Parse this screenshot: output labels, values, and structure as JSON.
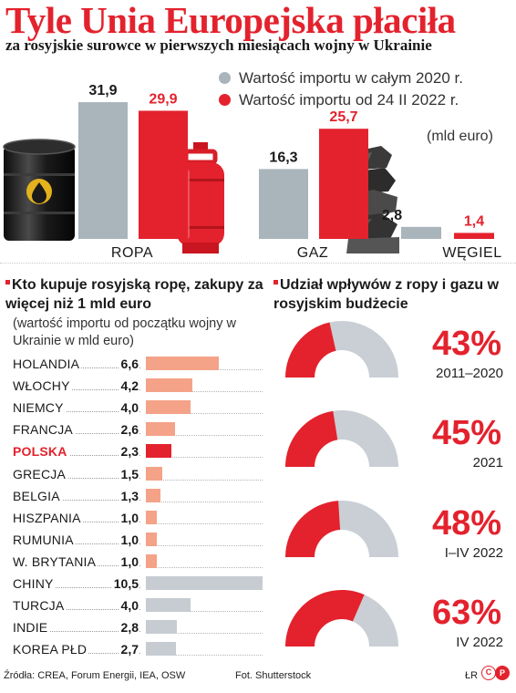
{
  "title": "Tyle Unia Europejska płaciła",
  "subtitle": "za rosyjskie surowce w pierwszych miesiącach wojny w Ukrainie",
  "colors": {
    "red": "#e3222d",
    "gray": "#a9b4bb",
    "salmon": "#f4a288",
    "lightgray": "#c6ccd1",
    "arc_gray": "#c9cfd4"
  },
  "chart_data": [
    {
      "type": "bar",
      "categories": [
        "ROPA",
        "GAZ",
        "WĘGIEL"
      ],
      "series": [
        {
          "name": "Wartość importu w całym 2020 r.",
          "values": [
            31.9,
            16.3,
            2.8
          ],
          "labels": [
            "31,9",
            "16,3",
            "2,8"
          ]
        },
        {
          "name": "Wartość importu od 24 II 2022 r.",
          "values": [
            29.9,
            25.7,
            1.4
          ],
          "labels": [
            "29,9",
            "25,7",
            "1,4"
          ]
        }
      ],
      "unit_note": "(mld euro)",
      "legend": "top-right",
      "icons": [
        "oil-barrel-icon",
        "gas-cylinder-icon",
        "coal-pile-icon"
      ]
    },
    {
      "type": "bar",
      "orientation": "horizontal",
      "title": "Kto kupuje rosyjską ropę, zakupy za więcej niż 1 mld euro",
      "subtitle": "(wartość importu od początku wojny w Ukrainie w mld euro)",
      "categories": [
        "HOLANDIA",
        "WŁOCHY",
        "NIEMCY",
        "FRANCJA",
        "POLSKA",
        "GRECJA",
        "BELGIA",
        "HISZPANIA",
        "RUMUNIA",
        "W. BRYTANIA",
        "CHINY",
        "TURCJA",
        "INDIE",
        "KOREA PŁD"
      ],
      "values": [
        6.6,
        4.2,
        4.0,
        2.6,
        2.3,
        1.5,
        1.3,
        1.0,
        1.0,
        1.0,
        10.5,
        4.0,
        2.8,
        2.7
      ],
      "labels": [
        "6,6",
        "4,2",
        "4,0",
        "2,6",
        "2,3",
        "1,5",
        "1,3",
        "1,0",
        "1,0",
        "1,0",
        "10,5",
        "4,0",
        "2,8",
        "2,7"
      ],
      "groups": [
        "eu",
        "eu",
        "eu",
        "eu",
        "pl",
        "eu",
        "eu",
        "eu",
        "eu",
        "eu",
        "other",
        "other",
        "other",
        "other"
      ],
      "highlight": "POLSKA"
    },
    {
      "type": "pie",
      "subtype": "half-donut",
      "title": "Udział wpływów z ropy i gazu w rosyjskim budżecie",
      "items": [
        {
          "value": 43,
          "label": "43%",
          "period": "2011–2020"
        },
        {
          "value": 45,
          "label": "45%",
          "period": "2021"
        },
        {
          "value": 48,
          "label": "48%",
          "period": "I–IV 2022"
        },
        {
          "value": 63,
          "label": "63%",
          "period": "IV 2022"
        }
      ]
    }
  ],
  "footer": {
    "sources": "Źródła: CREA, Forum Energii, IEA, OSW",
    "photo": "Fot.  Shutterstock",
    "author": "ŁR",
    "logo_text": "CP"
  }
}
